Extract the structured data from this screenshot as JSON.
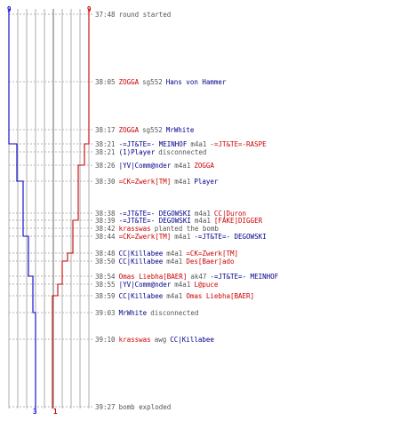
{
  "colors": {
    "blue_team": "#0000cc",
    "red_team": "#cc0000",
    "grid": "#9a9a9a",
    "text_gray": "#555555",
    "text_navy": "#00008b"
  },
  "team_counts": {
    "blue_start": "9",
    "red_start": "9",
    "blue_end": "3",
    "red_end": "1"
  },
  "events": [
    {
      "time": "37:48",
      "parts": [
        {
          "text": "round started",
          "color": "gray"
        }
      ]
    },
    {
      "time": "38:05",
      "parts": [
        {
          "text": "ZOGGA",
          "color": "red"
        },
        {
          "text": "sg552",
          "color": "gray"
        },
        {
          "text": "Hans von Hammer",
          "color": "blue"
        }
      ]
    },
    {
      "time": "38:17",
      "parts": [
        {
          "text": "ZOGGA",
          "color": "red"
        },
        {
          "text": "sg552",
          "color": "gray"
        },
        {
          "text": "MrWhite",
          "color": "blue"
        }
      ]
    },
    {
      "time": "38:21",
      "parts": [
        {
          "text": "-=JT&TE=- MEINHOF",
          "color": "blue"
        },
        {
          "text": "m4a1",
          "color": "gray"
        },
        {
          "text": "-=JT&TE=-RASPE",
          "color": "red"
        }
      ]
    },
    {
      "time": "38:21",
      "parts": [
        {
          "text": "(1)Player",
          "color": "blue"
        },
        {
          "text": "disconnected",
          "color": "gray"
        }
      ]
    },
    {
      "time": "38:26",
      "parts": [
        {
          "text": "|YV|Comm@nder",
          "color": "blue"
        },
        {
          "text": "m4a1",
          "color": "gray"
        },
        {
          "text": "ZOGGA",
          "color": "red"
        }
      ]
    },
    {
      "time": "38:30",
      "parts": [
        {
          "text": "=CK=Zwerk[TM]",
          "color": "red"
        },
        {
          "text": "m4a1",
          "color": "gray"
        },
        {
          "text": "Player",
          "color": "blue"
        }
      ]
    },
    {
      "time": "38:38",
      "parts": [
        {
          "text": "-=JT&TE=- DEGOWSKI",
          "color": "blue"
        },
        {
          "text": "m4a1",
          "color": "gray"
        },
        {
          "text": "CC|Duron",
          "color": "red"
        }
      ]
    },
    {
      "time": "38:39",
      "parts": [
        {
          "text": "-=JT&TE=- DEGOWSKI",
          "color": "blue"
        },
        {
          "text": "m4a1",
          "color": "gray"
        },
        {
          "text": "[FAKE]DIGGER",
          "color": "red"
        }
      ]
    },
    {
      "time": "38:42",
      "parts": [
        {
          "text": "krasswas",
          "color": "red"
        },
        {
          "text": "planted the bomb",
          "color": "gray"
        }
      ]
    },
    {
      "time": "38:44",
      "parts": [
        {
          "text": "=CK=Zwerk[TM]",
          "color": "red"
        },
        {
          "text": "m4a1",
          "color": "gray"
        },
        {
          "text": "-=JT&TE=- DEGOWSKI",
          "color": "blue"
        }
      ]
    },
    {
      "time": "38:48",
      "parts": [
        {
          "text": "CC|Killabee",
          "color": "blue"
        },
        {
          "text": "m4a1",
          "color": "gray"
        },
        {
          "text": "=CK=Zwerk[TM]",
          "color": "red"
        }
      ]
    },
    {
      "time": "38:50",
      "parts": [
        {
          "text": "CC|Killabee",
          "color": "blue"
        },
        {
          "text": "m4a1",
          "color": "gray"
        },
        {
          "text": "Des[Baer]ado",
          "color": "red"
        }
      ]
    },
    {
      "time": "38:54",
      "parts": [
        {
          "text": "Omas Liebha[BAER]",
          "color": "red"
        },
        {
          "text": "ak47",
          "color": "gray"
        },
        {
          "text": "-=JT&TE=- MEINHOF",
          "color": "blue"
        }
      ]
    },
    {
      "time": "38:55",
      "parts": [
        {
          "text": "|YV|Comm@nder",
          "color": "blue"
        },
        {
          "text": "m4a1",
          "color": "gray"
        },
        {
          "text": "L@puce",
          "color": "red"
        }
      ]
    },
    {
      "time": "38:59",
      "parts": [
        {
          "text": "CC|Killabee",
          "color": "blue"
        },
        {
          "text": "m4a1",
          "color": "gray"
        },
        {
          "text": "Omas Liebha[BAER]",
          "color": "red"
        }
      ]
    },
    {
      "time": "39:03",
      "parts": [
        {
          "text": "MrWhite",
          "color": "blue"
        },
        {
          "text": "disconnected",
          "color": "gray"
        }
      ]
    },
    {
      "time": "39:10",
      "parts": [
        {
          "text": "krasswas",
          "color": "red"
        },
        {
          "text": "awg",
          "color": "gray"
        },
        {
          "text": "CC|Killabee",
          "color": "blue"
        }
      ]
    },
    {
      "time": "39:27",
      "parts": [
        {
          "text": "bomb exploded",
          "color": "gray"
        }
      ]
    }
  ]
}
